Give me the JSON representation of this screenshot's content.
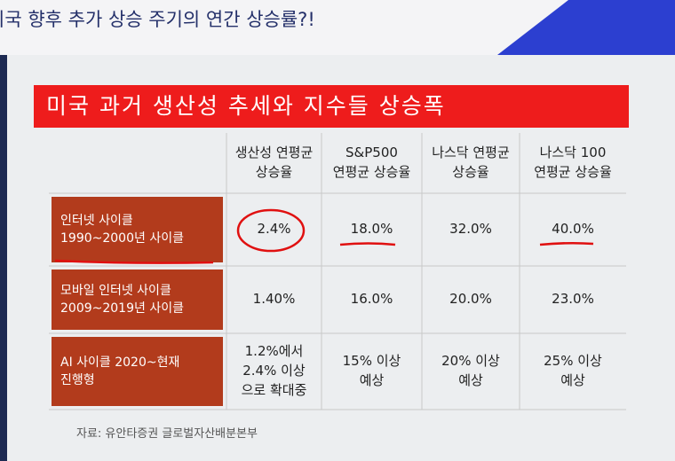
{
  "header": {
    "title": "미국 향후 추가 상승 주기의 연간 상승률?!"
  },
  "table": {
    "title": "미국 과거 생산성 추세와 지수들 상승폭",
    "columns": [
      "생산성 연평균\n상승율",
      "S&P500\n연평균 상승율",
      "나스닥 연평균\n상승율",
      "나스닥 100\n연평균 상승율"
    ],
    "rows": [
      [
        "인터넷 사이클\n1990~2000년 사이클",
        "2.4%",
        "18.0%",
        "32.0%",
        "40.0%"
      ],
      [
        "모바일 인터넷 사이클\n2009~2019년 사이클",
        "1.40%",
        "16.0%",
        "20.0%",
        "23.0%"
      ],
      [
        "AI 사이클 2020~현재\n진행형",
        "1.2%에서\n2.4% 이상\n으로 확대중",
        "15% 이상\n예상",
        "20% 이상\n예상",
        "25% 이상\n예상"
      ]
    ],
    "source": "자료: 유안타증권 글로벌자산배분본부"
  }
}
